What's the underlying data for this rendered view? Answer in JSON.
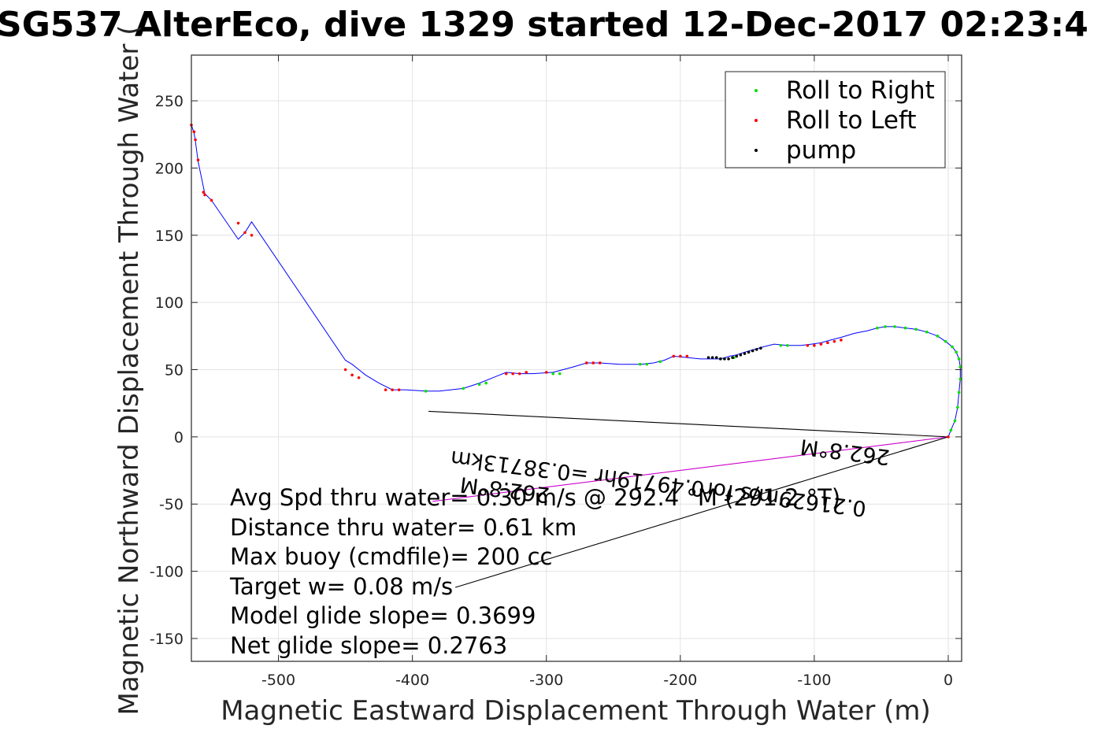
{
  "chart_data": {
    "type": "line",
    "title": "SG537 AlterEco, dive 1329 started 12-Dec-2017 02:23:4",
    "xlabel": "Magnetic Eastward Displacement Through Water (m)",
    "ylabel": "Magnetic Northward Displacement Through Water (",
    "xlim": [
      -565,
      10
    ],
    "ylim": [
      -167,
      284
    ],
    "xticks": [
      -500,
      -400,
      -300,
      -200,
      -100,
      0
    ],
    "yticks": [
      -150,
      -100,
      -50,
      0,
      50,
      100,
      150,
      200,
      250
    ],
    "xtick_labels": [
      "-500",
      "-400",
      "-300",
      "-200",
      "-100",
      "0"
    ],
    "ytick_labels": [
      "-150",
      "-100",
      "-50",
      "0",
      "50",
      "100",
      "150",
      "200",
      "250"
    ],
    "grid": true,
    "legend": {
      "position": "top-right",
      "entries": [
        {
          "label": "Roll to Right",
          "color": "#00e000"
        },
        {
          "label": "Roll to Left",
          "color": "#ff0000"
        },
        {
          "label": "pump",
          "color": "#000000"
        }
      ]
    },
    "track": {
      "color": "#0000ff",
      "x": [
        0,
        2,
        5,
        7,
        8,
        9,
        9,
        8,
        6,
        3,
        -2,
        -8,
        -16,
        -24,
        -32,
        -40,
        -47,
        -53,
        -60,
        -70,
        -80,
        -88,
        -95,
        -102,
        -110,
        -120,
        -130,
        -138,
        -145,
        -152,
        -158,
        -163,
        -170,
        -177,
        -185,
        -195,
        -205,
        -212,
        -220,
        -230,
        -245,
        -260,
        -270,
        -280,
        -295,
        -310,
        -320,
        -330,
        -340,
        -350,
        -362,
        -380,
        -390,
        -405,
        -415,
        -425,
        -435,
        -440,
        -445,
        -450,
        -520,
        -525,
        -530,
        -550,
        -555,
        -560,
        -562,
        -563,
        -565
      ],
      "y": [
        0,
        5,
        12,
        22,
        33,
        43,
        52,
        58,
        63,
        67,
        71,
        75,
        78,
        80,
        81,
        82,
        82,
        81,
        79,
        77,
        74,
        72,
        70,
        69,
        68,
        68,
        69,
        67,
        65,
        63,
        61,
        60,
        58,
        58,
        58,
        59,
        60,
        57,
        55,
        54,
        54,
        55,
        55,
        52,
        48,
        47,
        47,
        48,
        44,
        40,
        36,
        34,
        34,
        35,
        35,
        40,
        46,
        50,
        54,
        57,
        160,
        152,
        147,
        176,
        181,
        205,
        220,
        226,
        232
      ]
    },
    "markers": {
      "right_roll": {
        "color": "#00e000",
        "x": [
          2,
          5,
          7,
          8,
          9,
          9,
          8,
          6,
          3,
          -2,
          -8,
          -16,
          -24,
          -32,
          -40,
          -47,
          -53,
          -120,
          -125,
          -160,
          -170,
          -225,
          -230,
          -215,
          -290,
          -295,
          -345,
          -350,
          -362,
          -390
        ],
        "y": [
          5,
          12,
          22,
          33,
          43,
          52,
          58,
          63,
          67,
          71,
          75,
          78,
          80,
          81,
          82,
          82,
          81,
          68,
          68,
          59,
          58,
          54,
          54,
          56,
          47,
          47,
          40,
          39,
          36,
          34
        ]
      },
      "left_roll": {
        "color": "#ff0000",
        "x": [
          0,
          -80,
          -85,
          -90,
          -95,
          -100,
          -105,
          -195,
          -200,
          -205,
          -260,
          -265,
          -270,
          -300,
          -315,
          -320,
          -325,
          -330,
          -410,
          -415,
          -420,
          -440,
          -445,
          -450,
          -520,
          -525,
          -530,
          -550,
          -555,
          -556,
          -560,
          -562,
          -563,
          -565
        ],
        "y": [
          0,
          72,
          71,
          70,
          69,
          68,
          68,
          60,
          60,
          60,
          55,
          55,
          55,
          48,
          48,
          47,
          47,
          47,
          35,
          35,
          35,
          44,
          46,
          50,
          150,
          152,
          159,
          176,
          180,
          182,
          206,
          221,
          227,
          232
        ]
      },
      "pump": {
        "color": "#000000",
        "x": [
          -140,
          -143,
          -146,
          -149,
          -152,
          -155,
          -158,
          -161,
          -164,
          -167,
          -170,
          -173,
          -176,
          -179
        ],
        "y": [
          66,
          65,
          64,
          63,
          62,
          61,
          60,
          59,
          58,
          58,
          58,
          59,
          59,
          59
        ]
      }
    },
    "vectors": [
      {
        "name": "avg-current-vector",
        "color": "#000000",
        "x": [
          0,
          -388
        ],
        "y": [
          0,
          19
        ]
      },
      {
        "name": "through-water-vector",
        "color": "#cc00cc",
        "x": [
          0,
          -385
        ],
        "y": [
          0,
          -48
        ]
      },
      {
        "name": "drift-vector",
        "color": "#000000",
        "x": [
          0,
          -368
        ],
        "y": [
          0,
          -112
        ]
      }
    ],
    "vector_labels": [
      "0.21629m/s for0.49719hr =0.38713km",
      "262.8°M",
      "262.8°M"
    ],
    "annotations": [
      "Avg Spd thru water= 0.30 m/s @ 292.4 °M (291.2 °T)",
      "Distance thru water=  0.61 km",
      "Max buoy (cmdfile)= 200 cc",
      "Target w= 0.08 m/s",
      "Model glide slope= 0.3699",
      "Net glide slope= 0.2763"
    ]
  }
}
